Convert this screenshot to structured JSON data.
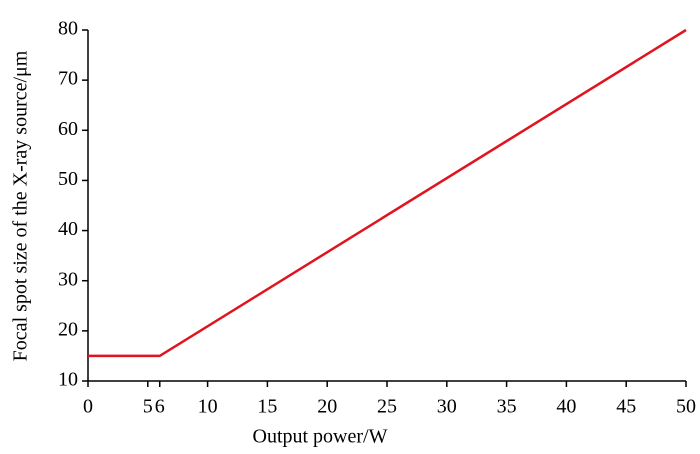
{
  "chart_data": {
    "type": "line",
    "xlabel": "Output power/W",
    "ylabel": "Focal spot size of the X-ray source/μm",
    "x": [
      0,
      6,
      50
    ],
    "series": [
      {
        "name": "Focal spot size",
        "color": "#e0141e",
        "values": [
          15,
          15,
          80
        ]
      }
    ],
    "xlim": [
      0,
      50
    ],
    "xticks": [
      0,
      5,
      6,
      10,
      15,
      20,
      25,
      30,
      35,
      40,
      45,
      50
    ],
    "ylim": [
      10,
      80
    ],
    "yticks": [
      10,
      20,
      30,
      40,
      50,
      60,
      70,
      80
    ],
    "grid": false
  }
}
